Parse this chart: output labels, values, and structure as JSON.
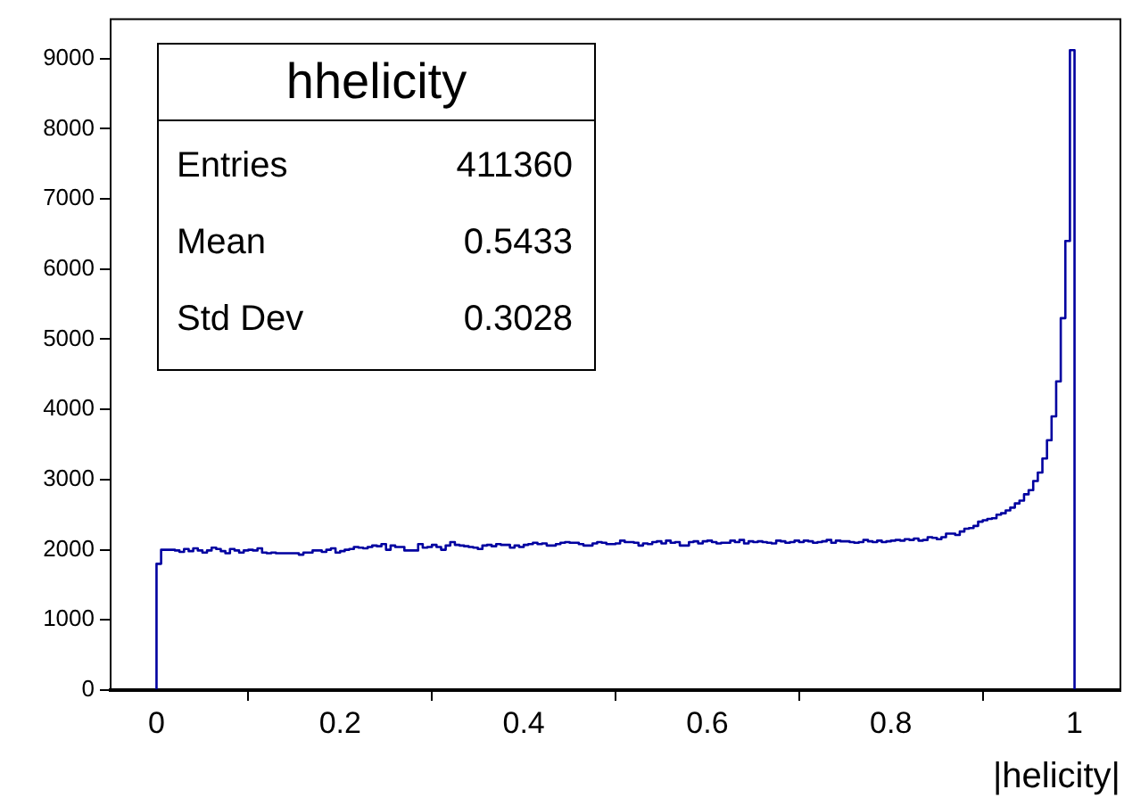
{
  "chart_data": {
    "type": "histogram",
    "title": "hhelicity",
    "xlabel": "|helicity|",
    "annotations": [
      "Entries",
      "411360",
      "Mean",
      "0.5433",
      "Std Dev",
      "0.3028"
    ],
    "color": "#0000a0",
    "xlim": [
      -0.05,
      1.05
    ],
    "xticks": [
      0,
      0.2,
      0.4,
      0.6,
      0.8,
      1
    ],
    "ylim": [
      0,
      9560
    ],
    "yticks": [
      0,
      1000,
      2000,
      3000,
      4000,
      5000,
      6000,
      7000,
      8000,
      9000
    ],
    "bins": [
      0,
      0.005,
      0.01,
      0.015,
      0.02,
      0.025,
      0.03,
      0.035,
      0.04,
      0.045,
      0.05,
      0.055,
      0.06,
      0.065,
      0.07,
      0.075,
      0.08,
      0.085,
      0.09,
      0.095,
      0.1,
      0.105,
      0.11,
      0.115,
      0.12,
      0.125,
      0.13,
      0.135,
      0.14,
      0.145,
      0.15,
      0.155,
      0.16,
      0.165,
      0.17,
      0.175,
      0.18,
      0.185,
      0.19,
      0.195,
      0.2,
      0.205,
      0.21,
      0.215,
      0.22,
      0.225,
      0.23,
      0.235,
      0.24,
      0.245,
      0.25,
      0.255,
      0.26,
      0.265,
      0.27,
      0.275,
      0.28,
      0.285,
      0.29,
      0.295,
      0.3,
      0.305,
      0.31,
      0.315,
      0.32,
      0.325,
      0.33,
      0.335,
      0.34,
      0.345,
      0.35,
      0.355,
      0.36,
      0.365,
      0.37,
      0.375,
      0.38,
      0.385,
      0.39,
      0.395,
      0.4,
      0.405,
      0.41,
      0.415,
      0.42,
      0.425,
      0.43,
      0.435,
      0.44,
      0.445,
      0.45,
      0.455,
      0.46,
      0.465,
      0.47,
      0.475,
      0.48,
      0.485,
      0.49,
      0.495,
      0.5,
      0.505,
      0.51,
      0.515,
      0.52,
      0.525,
      0.53,
      0.535,
      0.54,
      0.545,
      0.55,
      0.555,
      0.56,
      0.565,
      0.57,
      0.575,
      0.58,
      0.585,
      0.59,
      0.595,
      0.6,
      0.605,
      0.61,
      0.615,
      0.62,
      0.625,
      0.63,
      0.635,
      0.64,
      0.645,
      0.65,
      0.655,
      0.66,
      0.665,
      0.67,
      0.675,
      0.68,
      0.685,
      0.69,
      0.695,
      0.7,
      0.705,
      0.71,
      0.715,
      0.72,
      0.725,
      0.73,
      0.735,
      0.74,
      0.745,
      0.75,
      0.755,
      0.76,
      0.765,
      0.77,
      0.775,
      0.78,
      0.785,
      0.79,
      0.795,
      0.8,
      0.805,
      0.81,
      0.815,
      0.82,
      0.825,
      0.83,
      0.835,
      0.84,
      0.845,
      0.85,
      0.855,
      0.86,
      0.865,
      0.87,
      0.875,
      0.88,
      0.885,
      0.89,
      0.895,
      0.9,
      0.905,
      0.91,
      0.915,
      0.92,
      0.925,
      0.93,
      0.935,
      0.94,
      0.945,
      0.95,
      0.955,
      0.96,
      0.965,
      0.97,
      0.975,
      0.98,
      0.985,
      0.99,
      0.995,
      1
    ],
    "values": [
      1800,
      2000,
      2000,
      2000,
      1990,
      1970,
      2010,
      1980,
      2020,
      1990,
      1960,
      1990,
      2030,
      2010,
      1980,
      1950,
      2010,
      1990,
      1960,
      1990,
      2000,
      1990,
      2020,
      1960,
      1950,
      1960,
      1950,
      1950,
      1950,
      1950,
      1950,
      1930,
      1960,
      1960,
      1990,
      1990,
      1970,
      2000,
      2020,
      1960,
      1980,
      2000,
      2010,
      2040,
      2030,
      2020,
      2040,
      2060,
      2050,
      2080,
      2000,
      2060,
      2040,
      2040,
      1990,
      1990,
      1990,
      2080,
      2030,
      2040,
      2070,
      2040,
      2000,
      2060,
      2110,
      2070,
      2060,
      2050,
      2040,
      2030,
      2010,
      2060,
      2070,
      2050,
      2080,
      2070,
      2070,
      2030,
      2060,
      2040,
      2070,
      2080,
      2100,
      2080,
      2090,
      2060,
      2060,
      2080,
      2100,
      2110,
      2100,
      2100,
      2080,
      2060,
      2060,
      2090,
      2110,
      2100,
      2080,
      2080,
      2090,
      2130,
      2110,
      2110,
      2100,
      2060,
      2090,
      2080,
      2110,
      2120,
      2090,
      2130,
      2100,
      2110,
      2060,
      2060,
      2110,
      2120,
      2090,
      2120,
      2130,
      2110,
      2090,
      2100,
      2100,
      2130,
      2110,
      2140,
      2090,
      2120,
      2110,
      2120,
      2110,
      2100,
      2090,
      2130,
      2120,
      2100,
      2110,
      2130,
      2110,
      2130,
      2120,
      2100,
      2110,
      2120,
      2140,
      2100,
      2130,
      2120,
      2120,
      2110,
      2100,
      2110,
      2140,
      2120,
      2110,
      2130,
      2110,
      2120,
      2130,
      2140,
      2130,
      2150,
      2140,
      2160,
      2130,
      2140,
      2180,
      2170,
      2150,
      2180,
      2230,
      2230,
      2210,
      2260,
      2300,
      2310,
      2340,
      2400,
      2420,
      2440,
      2450,
      2500,
      2520,
      2560,
      2600,
      2660,
      2700,
      2790,
      2850,
      2980,
      3100,
      3300,
      3560,
      3900,
      4400,
      5300,
      6400,
      9120
    ]
  }
}
